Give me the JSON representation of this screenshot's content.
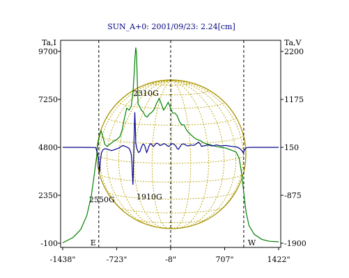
{
  "chart_data": {
    "type": "line",
    "title": "SUN_A+0: 2001/09/23: 2.24[cm]",
    "left_axis_label": "Ta,I",
    "right_axis_label": "Ta,V",
    "x_ticks": [
      "-1438\"",
      "-723\"",
      "-8\"",
      "707\"",
      "1422\""
    ],
    "x_range": [
      -1438,
      1422
    ],
    "left_ticks": [
      "9700",
      "7250",
      "4800",
      "2350",
      "-100"
    ],
    "left_range": [
      -100,
      9700
    ],
    "right_ticks": [
      "2200",
      "1175",
      "150",
      "-875",
      "-1900"
    ],
    "right_range": [
      -1900,
      2200
    ],
    "limb_markers": [
      {
        "label": "E",
        "x": -960
      },
      {
        "label": "W",
        "x": 960
      }
    ],
    "center_marker_x": -8,
    "annotations": [
      "2310G",
      "1910G",
      "2550G"
    ],
    "series": [
      {
        "axis": "left",
        "color": "#008000",
        "points": [
          [
            -1438,
            -80
          ],
          [
            -1300,
            200
          ],
          [
            -1200,
            600
          ],
          [
            -1120,
            1300
          ],
          [
            -1060,
            2300
          ],
          [
            -1020,
            3400
          ],
          [
            -990,
            4300
          ],
          [
            -975,
            4900
          ],
          [
            -950,
            5400
          ],
          [
            -930,
            5650
          ],
          [
            -910,
            5400
          ],
          [
            -880,
            4950
          ],
          [
            -850,
            4850
          ],
          [
            -800,
            5000
          ],
          [
            -750,
            5150
          ],
          [
            -720,
            5200
          ],
          [
            -680,
            5350
          ],
          [
            -650,
            5700
          ],
          [
            -620,
            6300
          ],
          [
            -590,
            6800
          ],
          [
            -560,
            6700
          ],
          [
            -530,
            6900
          ],
          [
            -505,
            7700
          ],
          [
            -490,
            8700
          ],
          [
            -480,
            9400
          ],
          [
            -470,
            9900
          ],
          [
            -460,
            9600
          ],
          [
            -450,
            8200
          ],
          [
            -440,
            7000
          ],
          [
            -420,
            6900
          ],
          [
            -395,
            6700
          ],
          [
            -370,
            6600
          ],
          [
            -345,
            6400
          ],
          [
            -320,
            6350
          ],
          [
            -290,
            6500
          ],
          [
            -255,
            6600
          ],
          [
            -225,
            6750
          ],
          [
            -195,
            7050
          ],
          [
            -160,
            7300
          ],
          [
            -130,
            7000
          ],
          [
            -100,
            6700
          ],
          [
            -70,
            6900
          ],
          [
            -40,
            7100
          ],
          [
            -10,
            6800
          ],
          [
            20,
            6550
          ],
          [
            50,
            6550
          ],
          [
            80,
            6400
          ],
          [
            110,
            6100
          ],
          [
            140,
            5950
          ],
          [
            170,
            5950
          ],
          [
            200,
            5700
          ],
          [
            230,
            5550
          ],
          [
            260,
            5450
          ],
          [
            300,
            5300
          ],
          [
            340,
            5200
          ],
          [
            380,
            5150
          ],
          [
            420,
            5050
          ],
          [
            460,
            4980
          ],
          [
            500,
            4950
          ],
          [
            540,
            4900
          ],
          [
            580,
            4860
          ],
          [
            620,
            4830
          ],
          [
            660,
            4800
          ],
          [
            700,
            4780
          ],
          [
            740,
            4740
          ],
          [
            780,
            4680
          ],
          [
            820,
            4620
          ],
          [
            860,
            4550
          ],
          [
            900,
            4250
          ],
          [
            930,
            3500
          ],
          [
            960,
            2500
          ],
          [
            990,
            1500
          ],
          [
            1030,
            800
          ],
          [
            1100,
            350
          ],
          [
            1200,
            100
          ],
          [
            1300,
            0
          ],
          [
            1422,
            -30
          ]
        ]
      },
      {
        "axis": "right",
        "color": "#00008b",
        "points": [
          [
            -1438,
            150
          ],
          [
            -1200,
            150
          ],
          [
            -1100,
            148
          ],
          [
            -1000,
            145
          ],
          [
            -985,
            60
          ],
          [
            -975,
            0
          ],
          [
            -965,
            -80
          ],
          [
            -955,
            -280
          ],
          [
            -948,
            -380
          ],
          [
            -940,
            -150
          ],
          [
            -925,
            30
          ],
          [
            -905,
            100
          ],
          [
            -880,
            120
          ],
          [
            -850,
            115
          ],
          [
            -820,
            95
          ],
          [
            -790,
            80
          ],
          [
            -760,
            95
          ],
          [
            -730,
            115
          ],
          [
            -700,
            130
          ],
          [
            -670,
            160
          ],
          [
            -640,
            190
          ],
          [
            -610,
            170
          ],
          [
            -580,
            150
          ],
          [
            -555,
            120
          ],
          [
            -540,
            60
          ],
          [
            -530,
            0
          ],
          [
            -522,
            -150
          ],
          [
            -515,
            -400
          ],
          [
            -508,
            -650
          ],
          [
            -503,
            -450
          ],
          [
            -497,
            100
          ],
          [
            -490,
            500
          ],
          [
            -483,
            900
          ],
          [
            -478,
            650
          ],
          [
            -470,
            250
          ],
          [
            -455,
            120
          ],
          [
            -435,
            40
          ],
          [
            -415,
            60
          ],
          [
            -395,
            160
          ],
          [
            -375,
            220
          ],
          [
            -355,
            200
          ],
          [
            -340,
            120
          ],
          [
            -325,
            40
          ],
          [
            -312,
            90
          ],
          [
            -295,
            180
          ],
          [
            -275,
            230
          ],
          [
            -255,
            200
          ],
          [
            -235,
            170
          ],
          [
            -215,
            210
          ],
          [
            -195,
            240
          ],
          [
            -175,
            230
          ],
          [
            -150,
            190
          ],
          [
            -125,
            200
          ],
          [
            -100,
            230
          ],
          [
            -75,
            215
          ],
          [
            -50,
            180
          ],
          [
            -30,
            170
          ],
          [
            -10,
            200
          ],
          [
            10,
            230
          ],
          [
            30,
            225
          ],
          [
            60,
            180
          ],
          [
            80,
            120
          ],
          [
            95,
            110
          ],
          [
            115,
            160
          ],
          [
            140,
            215
          ],
          [
            165,
            225
          ],
          [
            190,
            200
          ],
          [
            215,
            180
          ],
          [
            240,
            190
          ],
          [
            265,
            200
          ],
          [
            290,
            190
          ],
          [
            310,
            200
          ],
          [
            335,
            230
          ],
          [
            360,
            260
          ],
          [
            385,
            220
          ],
          [
            400,
            170
          ],
          [
            420,
            180
          ],
          [
            450,
            185
          ],
          [
            480,
            200
          ],
          [
            510,
            195
          ],
          [
            540,
            180
          ],
          [
            570,
            190
          ],
          [
            600,
            200
          ],
          [
            630,
            190
          ],
          [
            660,
            180
          ],
          [
            690,
            185
          ],
          [
            720,
            190
          ],
          [
            760,
            180
          ],
          [
            800,
            170
          ],
          [
            840,
            165
          ],
          [
            880,
            150
          ],
          [
            910,
            120
          ],
          [
            935,
            80
          ],
          [
            950,
            40
          ],
          [
            965,
            70
          ],
          [
            980,
            120
          ],
          [
            1000,
            145
          ],
          [
            1050,
            150
          ],
          [
            1200,
            150
          ],
          [
            1422,
            150
          ]
        ]
      }
    ]
  }
}
